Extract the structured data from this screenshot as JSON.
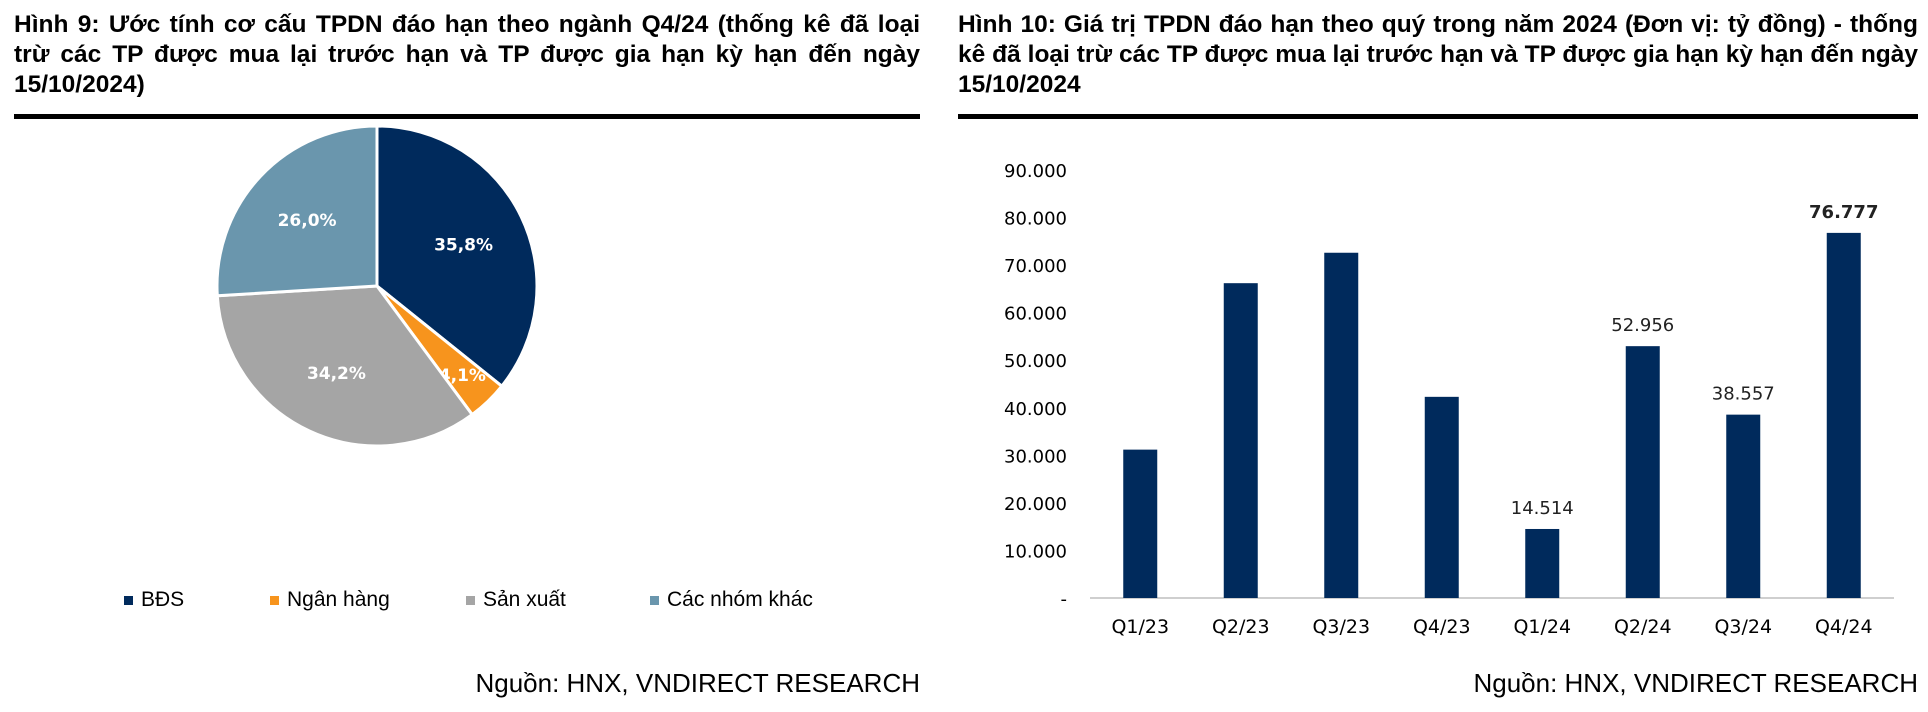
{
  "figure9": {
    "title": "Hình 9: Ước tính cơ cấu TPDN đáo hạn theo ngành Q4/24 (thống kê đã loại trừ các TP được mua lại trước hạn và TP được gia hạn kỳ hạn đến ngày 15/10/2024)",
    "source": "Nguồn: HNX, VNDIRECT RESEARCH"
  },
  "figure10": {
    "title": "Hình 10: Giá trị TPDN đáo hạn theo quý trong năm 2024 (Đơn vị: tỷ đồng) - thống kê đã loại trừ các TP được mua lại trước hạn và TP được gia hạn kỳ hạn đến ngày 15/10/2024",
    "source": "Nguồn: HNX, VNDIRECT RESEARCH"
  },
  "chart_data": [
    {
      "type": "pie",
      "title": "",
      "slices": [
        {
          "label": "BĐS",
          "value": 35.8,
          "display": "35,8%",
          "color": "#002a5c"
        },
        {
          "label": "Ngân hàng",
          "value": 4.1,
          "display": "4,1%",
          "color": "#f7941d"
        },
        {
          "label": "Sản xuất",
          "value": 34.2,
          "display": "34,2%",
          "color": "#a5a5a5"
        },
        {
          "label": "Các nhóm khác",
          "value": 26.0,
          "display": "26,0%",
          "color": "#6a96ad"
        }
      ],
      "start": "12 o'clock, clockwise",
      "legend_position": "bottom"
    },
    {
      "type": "bar",
      "title": "",
      "categories": [
        "Q1/23",
        "Q2/23",
        "Q3/23",
        "Q4/23",
        "Q1/24",
        "Q2/24",
        "Q3/24",
        "Q4/24"
      ],
      "values": [
        31200,
        66200,
        72600,
        42300,
        14514,
        52956,
        38557,
        76777
      ],
      "data_labels": [
        {
          "index": 4,
          "text": "14.514",
          "bold": false
        },
        {
          "index": 5,
          "text": "52.956",
          "bold": false
        },
        {
          "index": 6,
          "text": "38.557",
          "bold": false
        },
        {
          "index": 7,
          "text": "76.777",
          "bold": true
        }
      ],
      "yticks": [
        {
          "value": 0,
          "label": "-"
        },
        {
          "value": 10000,
          "label": "10.000"
        },
        {
          "value": 20000,
          "label": "20.000"
        },
        {
          "value": 30000,
          "label": "30.000"
        },
        {
          "value": 40000,
          "label": "40.000"
        },
        {
          "value": 50000,
          "label": "50.000"
        },
        {
          "value": 60000,
          "label": "60.000"
        },
        {
          "value": 70000,
          "label": "70.000"
        },
        {
          "value": 80000,
          "label": "80.000"
        },
        {
          "value": 90000,
          "label": "90.000"
        }
      ],
      "ylim": [
        0,
        90000
      ],
      "bar_color": "#002a5c",
      "grid": false,
      "xlabel": "",
      "ylabel": ""
    }
  ]
}
